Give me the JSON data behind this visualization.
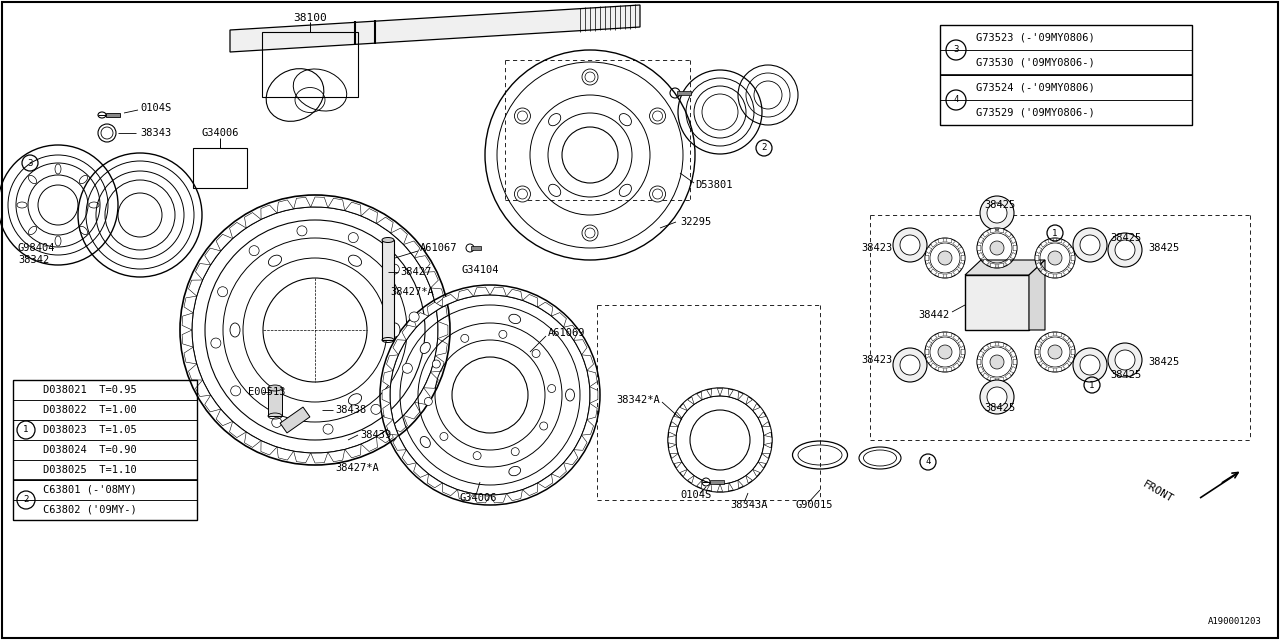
{
  "bg_color": "#ffffff",
  "line_color": "#000000",
  "fig_width": 12.8,
  "fig_height": 6.4,
  "watermark": "A190001203",
  "table1_rows": [
    "D038021  T=0.95",
    "D038022  T=1.00",
    "D038023  T=1.05",
    "D038024  T=0.90",
    "D038025  T=1.10",
    "C63801 (-'08MY)",
    "C63802 ('09MY-)"
  ],
  "table2_rows": [
    "G73523 (-'09MY0806)",
    "G73530 ('09MY0806-)",
    "G73524 (-'09MY0806)",
    "G73529 ('09MY0806-)"
  ],
  "t1_group1_count": 5,
  "t1_group1_circle": 1,
  "t1_group2_circle": 2,
  "t2_group1_circle": 3,
  "t2_group2_circle": 4
}
